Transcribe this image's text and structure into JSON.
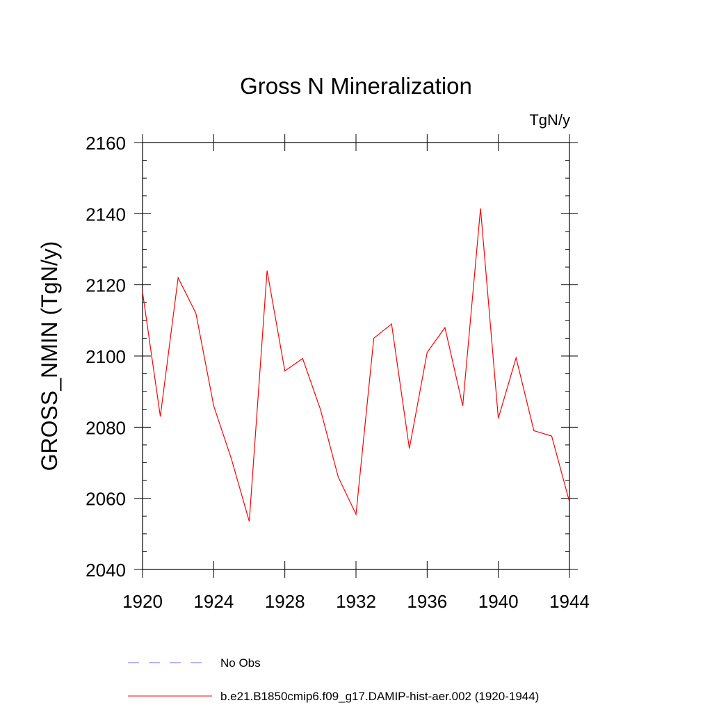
{
  "chart_data": {
    "type": "line",
    "title": "Gross N Mineralization",
    "units_label": "TgN/y",
    "ylabel": "GROSS_NMIN  (TgN/y)",
    "xlabel": "",
    "xlim": [
      1920,
      1944
    ],
    "ylim": [
      2040,
      2160
    ],
    "x_ticks": [
      1920,
      1924,
      1928,
      1932,
      1936,
      1940,
      1944
    ],
    "y_ticks": [
      2040,
      2060,
      2080,
      2100,
      2120,
      2140,
      2160
    ],
    "grid": false,
    "legend_placement": "bottom",
    "series": [
      {
        "name": "b.e21.B1850cmip6.f09_g17.DAMIP-hist-aer.002 (1920-1944)",
        "color": "#ff0000",
        "style": "solid",
        "x": [
          1920,
          1921,
          1922,
          1923,
          1924,
          1925,
          1926,
          1927,
          1928,
          1929,
          1930,
          1931,
          1932,
          1933,
          1934,
          1935,
          1936,
          1937,
          1938,
          1939,
          1940,
          1941,
          1942,
          1943,
          1944
        ],
        "values": [
          2118,
          2083,
          2122,
          2112,
          2086,
          2071,
          2053.5,
          2124,
          2095.8,
          2099.3,
          2085,
          2066,
          2055.5,
          2105,
          2109,
          2074,
          2101,
          2108,
          2086,
          2141.5,
          2082.5,
          2099.5,
          2079,
          2077.5,
          2059
        ]
      }
    ],
    "legend": [
      {
        "label": "No Obs",
        "color": "#6a6aff",
        "style": "dashed"
      },
      {
        "label": "b.e21.B1850cmip6.f09_g17.DAMIP-hist-aer.002 (1920-1944)",
        "color": "#ff0000",
        "style": "solid"
      }
    ]
  }
}
